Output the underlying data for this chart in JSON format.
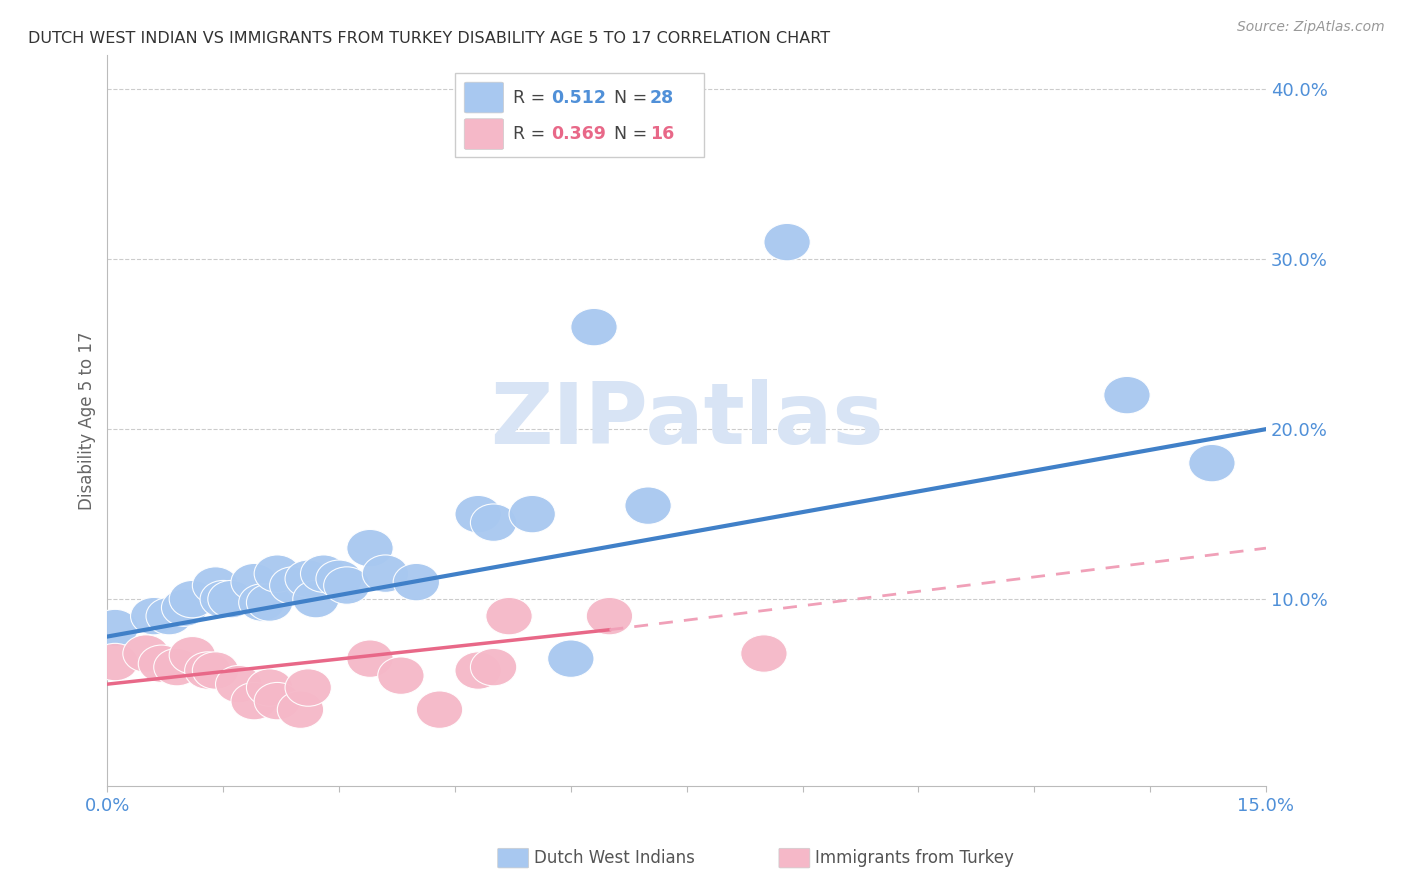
{
  "title": "DUTCH WEST INDIAN VS IMMIGRANTS FROM TURKEY DISABILITY AGE 5 TO 17 CORRELATION CHART",
  "source": "Source: ZipAtlas.com",
  "ylabel_label": "Disability Age 5 to 17",
  "xlim": [
    0.0,
    0.15
  ],
  "ylim": [
    -0.01,
    0.42
  ],
  "x_ticks": [
    0.0,
    0.015,
    0.03,
    0.045,
    0.06,
    0.075,
    0.09,
    0.105,
    0.12,
    0.135,
    0.15
  ],
  "x_tick_labels_show": {
    "0.0": "0.0%",
    "0.15": "15.0%"
  },
  "y_ticks_right": [
    0.1,
    0.2,
    0.3,
    0.4
  ],
  "y_tick_labels_right": [
    "10.0%",
    "20.0%",
    "30.0%",
    "40.0%"
  ],
  "blue_color": "#A8C8F0",
  "pink_color": "#F5B8C8",
  "blue_line_color": "#4080C8",
  "pink_line_color": "#E86888",
  "pink_dash_color": "#F0A0B8",
  "watermark_text": "ZIPatlas",
  "watermark_color": "#D8E4F5",
  "right_tick_color": "#5090D8",
  "blue_scatter": [
    [
      0.001,
      0.083
    ],
    [
      0.006,
      0.09
    ],
    [
      0.008,
      0.09
    ],
    [
      0.01,
      0.095
    ],
    [
      0.011,
      0.1
    ],
    [
      0.014,
      0.108
    ],
    [
      0.015,
      0.1
    ],
    [
      0.016,
      0.1
    ],
    [
      0.019,
      0.11
    ],
    [
      0.02,
      0.098
    ],
    [
      0.021,
      0.098
    ],
    [
      0.022,
      0.115
    ],
    [
      0.024,
      0.108
    ],
    [
      0.026,
      0.112
    ],
    [
      0.027,
      0.1
    ],
    [
      0.028,
      0.115
    ],
    [
      0.03,
      0.112
    ],
    [
      0.031,
      0.108
    ],
    [
      0.034,
      0.13
    ],
    [
      0.036,
      0.115
    ],
    [
      0.04,
      0.11
    ],
    [
      0.048,
      0.15
    ],
    [
      0.05,
      0.145
    ],
    [
      0.055,
      0.15
    ],
    [
      0.06,
      0.065
    ],
    [
      0.063,
      0.26
    ],
    [
      0.07,
      0.155
    ],
    [
      0.088,
      0.31
    ],
    [
      0.132,
      0.22
    ],
    [
      0.143,
      0.18
    ]
  ],
  "pink_scatter": [
    [
      0.001,
      0.063
    ],
    [
      0.005,
      0.068
    ],
    [
      0.007,
      0.062
    ],
    [
      0.009,
      0.06
    ],
    [
      0.011,
      0.067
    ],
    [
      0.013,
      0.058
    ],
    [
      0.014,
      0.058
    ],
    [
      0.017,
      0.05
    ],
    [
      0.019,
      0.04
    ],
    [
      0.021,
      0.048
    ],
    [
      0.022,
      0.04
    ],
    [
      0.025,
      0.035
    ],
    [
      0.026,
      0.048
    ],
    [
      0.034,
      0.065
    ],
    [
      0.038,
      0.055
    ],
    [
      0.043,
      0.035
    ],
    [
      0.048,
      0.058
    ],
    [
      0.05,
      0.06
    ],
    [
      0.052,
      0.09
    ],
    [
      0.065,
      0.09
    ],
    [
      0.085,
      0.068
    ]
  ],
  "blue_trendline": [
    [
      0.0,
      0.078
    ],
    [
      0.15,
      0.2
    ]
  ],
  "pink_trendline_solid": [
    [
      0.0,
      0.05
    ],
    [
      0.065,
      0.082
    ]
  ],
  "pink_trendline_dash": [
    [
      0.065,
      0.082
    ],
    [
      0.15,
      0.13
    ]
  ]
}
